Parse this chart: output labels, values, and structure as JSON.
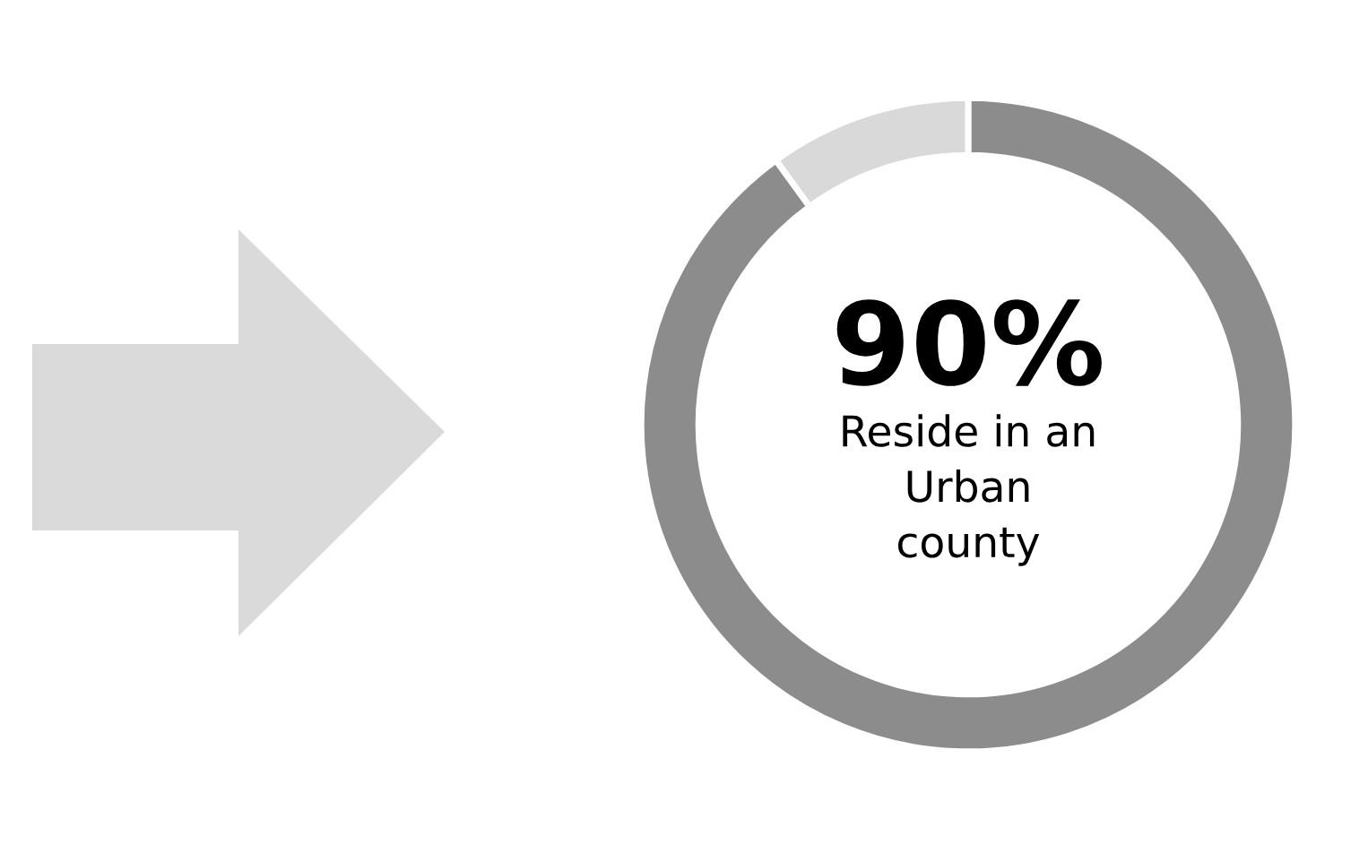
{
  "chart_data": {
    "type": "donut",
    "categories": [
      null,
      null
    ],
    "values": [
      90,
      10
    ],
    "colors": [
      "#8c8c8c",
      "#d9d9d9"
    ],
    "value_labels": [
      "90%",
      null
    ],
    "annotations": [
      "Reside in an\nUrban\ncounty"
    ]
  }
}
